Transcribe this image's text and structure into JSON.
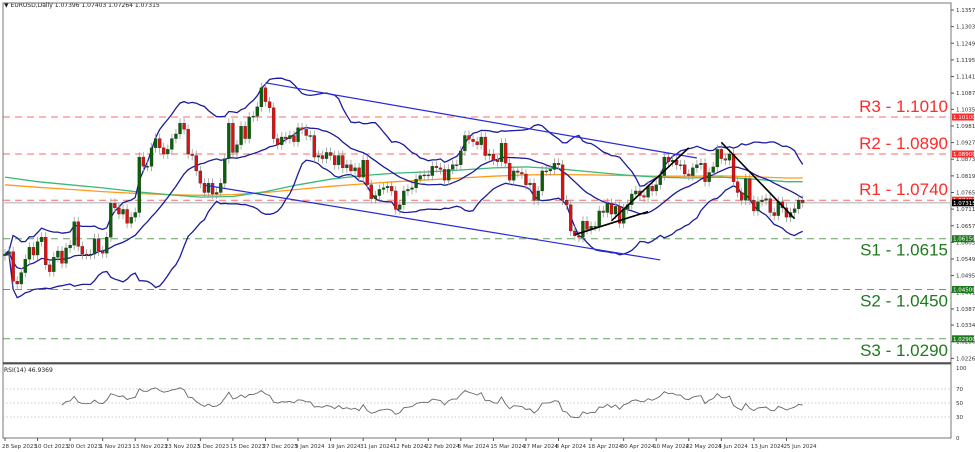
{
  "header": {
    "arrow": "▼",
    "symbol": "EURUSD,Daily",
    "ohlc": "1.07396 1.07403 1.07264 1.07315"
  },
  "rsi_panel": {
    "title": "RSI(14) 46.9369",
    "levels": [
      "100",
      "70",
      "50",
      "30",
      "0"
    ]
  },
  "colors": {
    "bull": "#0a5f0a",
    "bear": "#e01010",
    "wick": "#9a9a9a",
    "bollinger": "#1c1c9c",
    "channel": "#2a2ad8",
    "trendline": "#000000",
    "ma_fast": "#3cb878",
    "ma_slow": "#ff9a1a",
    "resistance": "#ff2a2a",
    "support": "#1f7a1f",
    "rsi": "#666666"
  },
  "chart_data": {
    "type": "candlestick",
    "symbol": "EURUSD",
    "timeframe": "Daily",
    "ylim": [
      1.02265,
      1.13575
    ],
    "price_ticks": [
      "1.13575",
      "1.13035",
      "1.12495",
      "1.11955",
      "1.11415",
      "1.10875",
      "1.10350",
      "1.09810",
      "1.09270",
      "1.08730",
      "1.08190",
      "1.07650",
      "1.07110",
      "1.06570",
      "1.06030",
      "1.05490",
      "1.04950",
      "1.04410",
      "1.03870",
      "1.03345",
      "1.02805",
      "1.02265"
    ],
    "date_labels": [
      "28 Sep 2023",
      "10 Oct 2023",
      "20 Oct 2023",
      "1 Nov 2023",
      "13 Nov 2023",
      "23 Nov 2023",
      "5 Dec 2023",
      "15 Dec 2023",
      "27 Dec 2023",
      "9 Jan 2024",
      "19 Jan 2024",
      "31 Jan 2024",
      "12 Feb 2024",
      "22 Feb 2024",
      "5 Mar 2024",
      "15 Mar 2024",
      "27 Mar 2024",
      "8 Apr 2024",
      "18 Apr 2024",
      "30 Apr 2024",
      "10 May 2024",
      "22 May 2024",
      "3 Jun 2024",
      "13 Jun 2024",
      "25 Jun 2024"
    ],
    "first_open": 1.056,
    "closes": [
      1.0565,
      1.0573,
      1.0477,
      1.0468,
      1.0505,
      1.0548,
      1.0587,
      1.0562,
      1.0605,
      1.062,
      1.053,
      1.0508,
      1.0555,
      1.0575,
      1.0535,
      1.0585,
      1.0594,
      1.067,
      1.059,
      1.0565,
      1.0564,
      1.0565,
      1.0615,
      1.0575,
      1.0568,
      1.062,
      1.073,
      1.0715,
      1.0695,
      1.071,
      1.0665,
      1.0685,
      1.07,
      1.088,
      1.085,
      1.085,
      1.091,
      1.094,
      1.091,
      1.089,
      1.0905,
      1.094,
      1.0955,
      1.099,
      1.097,
      1.089,
      1.0885,
      1.0835,
      1.0795,
      1.0765,
      1.0795,
      1.076,
      1.0765,
      1.0795,
      1.0875,
      1.099,
      1.0895,
      1.092,
      1.098,
      1.094,
      1.101,
      1.1013,
      1.1043,
      1.1105,
      1.106,
      1.104,
      1.094,
      1.092,
      1.0945,
      1.094,
      1.095,
      1.093,
      1.0975,
      1.097,
      1.095,
      1.095,
      1.088,
      1.0885,
      1.0875,
      1.0895,
      1.0885,
      1.0855,
      1.0885,
      1.0845,
      1.0855,
      1.0835,
      1.0845,
      1.0815,
      1.087,
      1.079,
      1.0745,
      1.0755,
      1.0775,
      1.078,
      1.0785,
      1.077,
      1.071,
      1.0725,
      1.077,
      1.0775,
      1.078,
      1.0808,
      1.082,
      1.0822,
      1.082,
      1.085,
      1.0845,
      1.084,
      1.0805,
      1.084,
      1.0855,
      1.0855,
      1.09,
      1.095,
      1.0938,
      1.093,
      1.092,
      1.0945,
      1.0885,
      1.089,
      1.087,
      1.0865,
      1.0925,
      1.086,
      1.0805,
      1.0835,
      1.083,
      1.0825,
      1.079,
      1.0795,
      1.074,
      1.077,
      1.0835,
      1.0835,
      1.084,
      1.086,
      1.0855,
      1.074,
      1.0725,
      1.064,
      1.0625,
      1.062,
      1.0672,
      1.0645,
      1.0655,
      1.0655,
      1.0705,
      1.07,
      1.073,
      1.0695,
      1.072,
      1.0665,
      1.0712,
      1.0725,
      1.076,
      1.077,
      1.0755,
      1.075,
      1.0785,
      1.077,
      1.079,
      1.082,
      1.088,
      1.0865,
      1.087,
      1.0855,
      1.0855,
      1.0825,
      1.082,
      1.0845,
      1.0855,
      1.086,
      1.08,
      1.083,
      1.0848,
      1.0905,
      1.0875,
      1.087,
      1.089,
      1.08,
      1.0765,
      1.074,
      1.081,
      1.074,
      1.0705,
      1.0735,
      1.074,
      1.0745,
      1.07,
      1.069,
      1.0735,
      1.0715,
      1.0685,
      1.07,
      1.0712,
      1.074,
      1.0732
    ],
    "current_price": "1.07315",
    "indicators": {
      "bollinger": {
        "period": 20,
        "deviations": 2
      },
      "rsi": {
        "period": 14,
        "value": 46.9369,
        "levels": [
          70,
          50,
          30
        ]
      },
      "ma_fast": [
        1.0815,
        1.08,
        1.079,
        1.078,
        1.0768,
        1.0758,
        1.075,
        1.0752,
        1.0768,
        1.079,
        1.0808,
        1.082,
        1.0828,
        1.0832,
        1.0838,
        1.0845,
        1.0848,
        1.0842,
        1.0832,
        1.0822,
        1.0815,
        1.0812,
        1.0815,
        1.0808,
        1.08
      ],
      "ma_slow": [
        1.079,
        1.0782,
        1.0775,
        1.0768,
        1.0762,
        1.0758,
        1.0756,
        1.0758,
        1.0765,
        1.0775,
        1.0785,
        1.0793,
        1.08,
        1.0806,
        1.0812,
        1.0818,
        1.0822,
        1.0823,
        1.0822,
        1.082,
        1.0818,
        1.0818,
        1.0819,
        1.0816,
        1.0812
      ]
    },
    "levels": [
      {
        "label": "R3 - 1.1010",
        "price": 1.101,
        "tag": "1.10100",
        "kind": "resistance"
      },
      {
        "label": "R2 - 1.0890",
        "price": 1.089,
        "tag": "1.08900",
        "kind": "resistance"
      },
      {
        "label": "R1 - 1.0740",
        "price": 1.074,
        "tag": "1.07400",
        "kind": "resistance"
      },
      {
        "label": "S1 - 1.0615",
        "price": 1.0615,
        "tag": "1.06150",
        "kind": "support"
      },
      {
        "label": "S2 - 1.0450",
        "price": 1.045,
        "tag": "1.04500",
        "kind": "support"
      },
      {
        "label": "S3 - 1.0290",
        "price": 1.029,
        "tag": "1.02900",
        "kind": "support"
      }
    ],
    "trendlines": [
      {
        "kind": "channel-upper",
        "from": [
          "2023-12-28",
          1.1121
        ],
        "to": [
          "2024-05-27",
          1.0877
        ]
      },
      {
        "kind": "channel-lower",
        "from": [
          "2023-12-06",
          1.0789
        ],
        "to": [
          "2024-05-14",
          1.0546
        ]
      },
      {
        "kind": "support",
        "from": [
          "2024-04-15",
          1.0628
        ],
        "to": [
          "2024-05-09",
          1.0703
        ]
      },
      {
        "kind": "rising",
        "from": [
          "2024-04-26",
          1.0673
        ],
        "to": [
          "2024-05-23",
          1.091
        ]
      },
      {
        "kind": "falling",
        "from": [
          "2024-06-04",
          1.0928
        ],
        "to": [
          "2024-06-28",
          1.068
        ]
      }
    ]
  }
}
